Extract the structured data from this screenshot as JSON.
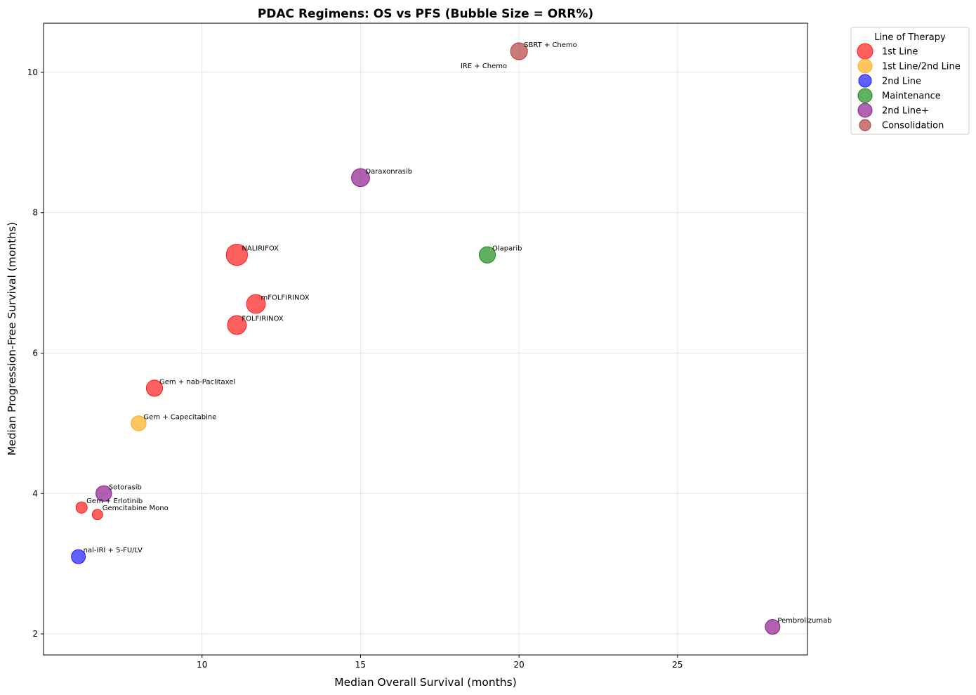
{
  "chart_data": {
    "type": "scatter",
    "title": "PDAC Regimens: OS vs PFS (Bubble Size = ORR%)",
    "xlabel": "Median Overall Survival (months)",
    "ylabel": "Median Progression-Free Survival (months)",
    "xlim": [
      5,
      29.1
    ],
    "ylim": [
      1.7,
      10.7
    ],
    "xticks": [
      10,
      15,
      20,
      25
    ],
    "yticks": [
      2,
      4,
      6,
      8,
      10
    ],
    "grid": true,
    "legend": {
      "title": "Line of Therapy",
      "placement": "outside-top-right",
      "entries": [
        {
          "name": "1st Line",
          "color": "#ff0000"
        },
        {
          "name": "1st Line/2nd Line",
          "color": "#ffa500"
        },
        {
          "name": "2nd Line",
          "color": "#0000ff"
        },
        {
          "name": "Maintenance",
          "color": "#008000"
        },
        {
          "name": "2nd Line+",
          "color": "#800080"
        },
        {
          "name": "Consolidation",
          "color": "#a52a2a"
        }
      ]
    },
    "points": [
      {
        "label": "NALIRIFOX",
        "os": 11.1,
        "pfs": 7.4,
        "group": "1st Line",
        "orr": 42
      },
      {
        "label": "mFOLFIRINOX",
        "os": 11.7,
        "pfs": 6.7,
        "group": "1st Line",
        "orr": 32
      },
      {
        "label": "FOLFIRINOX",
        "os": 11.1,
        "pfs": 6.4,
        "group": "1st Line",
        "orr": 32
      },
      {
        "label": "Gem + nab-Paclitaxel",
        "os": 8.5,
        "pfs": 5.5,
        "group": "1st Line",
        "orr": 23
      },
      {
        "label": "Gem + Erlotinib",
        "os": 6.2,
        "pfs": 3.8,
        "group": "1st Line",
        "orr": 9
      },
      {
        "label": "Gemcitabine Mono",
        "os": 6.7,
        "pfs": 3.7,
        "group": "1st Line",
        "orr": 7
      },
      {
        "label": "Gem + Capecitabine",
        "os": 8.0,
        "pfs": 5.0,
        "group": "1st Line/2nd Line",
        "orr": 19
      },
      {
        "label": "nal-IRI + 5-FU/LV",
        "os": 6.1,
        "pfs": 3.1,
        "group": "2nd Line",
        "orr": 16
      },
      {
        "label": "Olaparib",
        "os": 19.0,
        "pfs": 7.4,
        "group": "Maintenance",
        "orr": 23
      },
      {
        "label": "Daraxonrasib",
        "os": 15.0,
        "pfs": 8.5,
        "group": "2nd Line+",
        "orr": 29
      },
      {
        "label": "Sotorasib",
        "os": 6.9,
        "pfs": 4.0,
        "group": "2nd Line+",
        "orr": 21
      },
      {
        "label": "Pembrolizumab",
        "os": 28.0,
        "pfs": 2.1,
        "group": "2nd Line+",
        "orr": 18
      },
      {
        "label": "SBRT + Chemo",
        "os": 20.0,
        "pfs": 10.3,
        "group": "Consolidation",
        "orr": 25
      },
      {
        "label": "IRE + Chemo",
        "os": 18.0,
        "pfs": 10.0,
        "group": "Consolidation",
        "orr": 0
      }
    ]
  }
}
